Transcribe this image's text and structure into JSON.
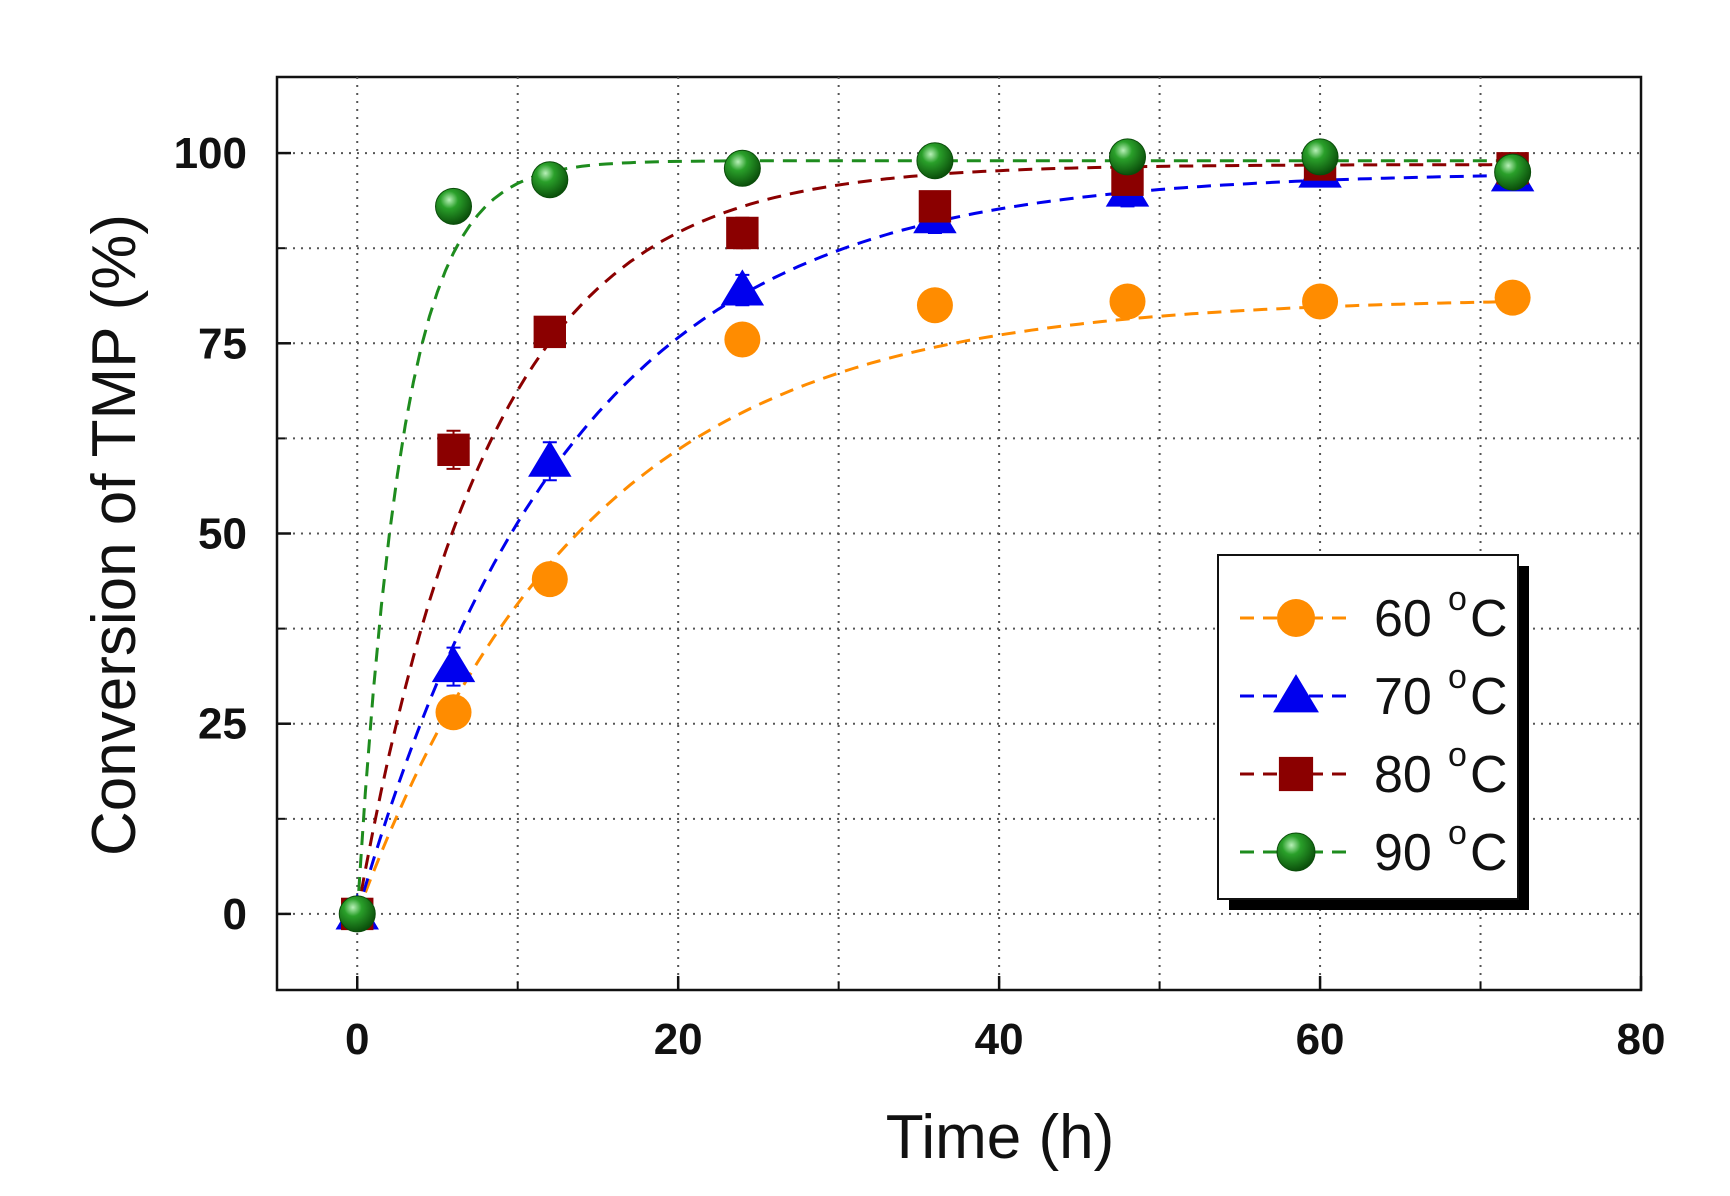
{
  "chart_data": {
    "type": "scatter",
    "title": "",
    "xlabel": "Time (h)",
    "ylabel": "Conversion of TMP (%)",
    "xlim": [
      -5,
      80
    ],
    "ylim": [
      -10,
      110
    ],
    "xticks": [
      0,
      20,
      40,
      60,
      80
    ],
    "yticks": [
      0,
      25,
      50,
      75,
      100
    ],
    "grid": true,
    "legend_position": "center-right",
    "series": [
      {
        "name": "60",
        "unit": "oC",
        "color": "#FF8C00",
        "marker": "circle",
        "x": [
          0,
          6,
          12,
          24,
          36,
          48,
          60,
          72
        ],
        "y": [
          0,
          26.5,
          44,
          75.5,
          80,
          80.5,
          80.5,
          81
        ],
        "err": [
          0,
          1.5,
          2,
          1.5,
          2,
          1,
          1,
          1
        ],
        "fit_k": 0.07,
        "fit_max": 81
      },
      {
        "name": "70",
        "unit": "oC",
        "color": "#0000EE",
        "marker": "triangle",
        "x": [
          0,
          6,
          12,
          24,
          36,
          48,
          60,
          72
        ],
        "y": [
          0,
          32.5,
          59.5,
          82,
          91.5,
          95,
          97.5,
          97
        ],
        "err": [
          0,
          2.5,
          2.5,
          2,
          2,
          2,
          1.5,
          1
        ],
        "fit_k": 0.075,
        "fit_max": 97.5
      },
      {
        "name": "80",
        "unit": "oC",
        "color": "#8B0000",
        "marker": "square",
        "x": [
          0,
          6,
          12,
          24,
          36,
          48,
          60,
          72
        ],
        "y": [
          0,
          61,
          76.5,
          89.5,
          93,
          96.5,
          98.5,
          98
        ],
        "err": [
          0,
          2.5,
          1.5,
          2,
          1.5,
          1.5,
          1,
          1
        ],
        "fit_k": 0.12,
        "fit_max": 98.5
      },
      {
        "name": "90",
        "unit": "oC",
        "color": "#1E8C1E",
        "marker": "sphere",
        "x": [
          0,
          6,
          12,
          24,
          36,
          48,
          60,
          72
        ],
        "y": [
          0,
          93,
          96.5,
          98,
          99,
          99.5,
          99.5,
          97.5
        ],
        "err": [
          0,
          1,
          1,
          1,
          1,
          1,
          1,
          1
        ],
        "fit_k": 0.35,
        "fit_max": 99
      }
    ]
  }
}
